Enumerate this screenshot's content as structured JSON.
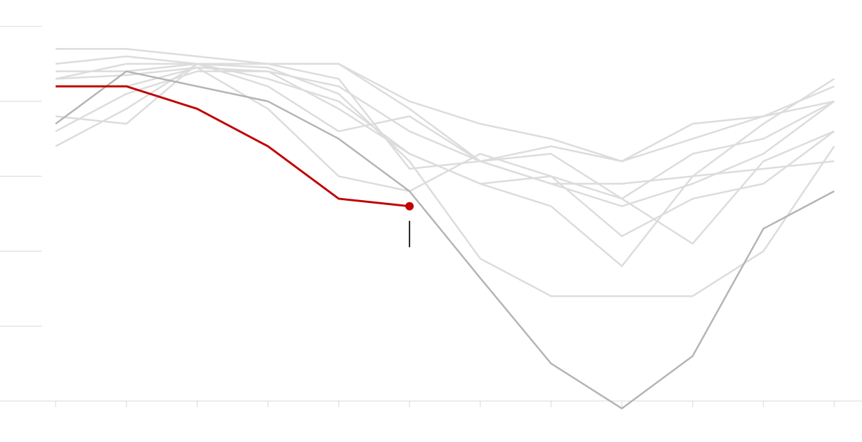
{
  "chart_data": {
    "type": "line",
    "categories": [
      null,
      null,
      null,
      null,
      null,
      null,
      null,
      null,
      null,
      null,
      null,
      null
    ],
    "ylim": [
      0,
      5
    ],
    "yticks": [
      0,
      1,
      2,
      3,
      4,
      5
    ],
    "series": [
      {
        "color": "#dcdcdc",
        "values": [
          4.7,
          4.7,
          4.6,
          4.5,
          4.5,
          4.0,
          3.7,
          3.5,
          3.2,
          3.5,
          3.8,
          4.2
        ]
      },
      {
        "color": "#dcdcdc",
        "values": [
          4.5,
          4.6,
          4.5,
          4.5,
          4.5,
          3.9,
          3.2,
          2.9,
          2.9,
          3.0,
          3.1,
          3.2
        ]
      },
      {
        "color": "#dcdcdc",
        "values": [
          3.4,
          3.9,
          4.5,
          4.45,
          4.1,
          3.2,
          1.9,
          1.4,
          1.4,
          1.4,
          2.0,
          3.4
        ]
      },
      {
        "color": "#dcdcdc",
        "values": [
          3.8,
          3.7,
          4.5,
          4.2,
          3.6,
          3.8,
          3.2,
          3.4,
          3.2,
          3.7,
          3.8,
          4.0
        ]
      },
      {
        "color": "#dcdcdc",
        "values": [
          4.3,
          4.5,
          4.5,
          4.3,
          4.0,
          3.3,
          2.9,
          2.6,
          1.8,
          3.0,
          3.7,
          4.3
        ]
      },
      {
        "color": "#dcdcdc",
        "values": [
          3.6,
          4.1,
          4.4,
          4.4,
          3.9,
          3.3,
          2.9,
          3.0,
          2.7,
          3.3,
          3.5,
          4.0
        ]
      },
      {
        "color": "#dcdcdc",
        "values": [
          4.4,
          4.4,
          4.5,
          4.5,
          4.3,
          3.1,
          3.2,
          3.3,
          2.7,
          2.1,
          3.2,
          3.6
        ]
      },
      {
        "color": "#dcdcdc",
        "values": [
          4.2,
          4.2,
          4.45,
          3.9,
          3.0,
          2.8,
          3.3,
          3.0,
          2.2,
          2.7,
          2.9,
          3.6
        ]
      },
      {
        "color": "#dcdcdc",
        "values": [
          4.3,
          4.35,
          4.45,
          4.4,
          4.2,
          3.6,
          3.2,
          2.9,
          2.6,
          2.9,
          3.3,
          4.0
        ]
      },
      {
        "color": "#b4b4b4",
        "values": [
          3.7,
          4.4,
          4.2,
          4.0,
          3.5,
          2.8,
          1.64,
          0.5,
          -0.1,
          0.6,
          2.3,
          2.8
        ]
      },
      {
        "color": "#c00000",
        "values": [
          4.2,
          4.2,
          3.9,
          3.4,
          2.7,
          2.6,
          null,
          null,
          null,
          null,
          null,
          null
        ]
      }
    ]
  }
}
